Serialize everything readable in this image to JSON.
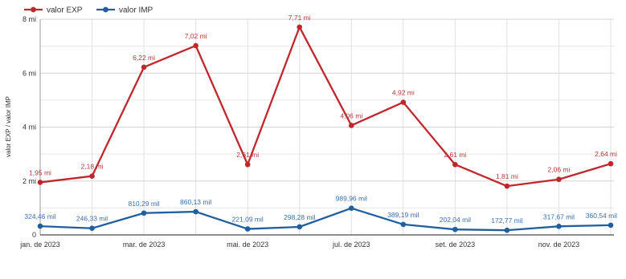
{
  "chart_data": {
    "type": "line",
    "x": [
      "2023-01",
      "2023-02",
      "2023-03",
      "2023-04",
      "2023-05",
      "2023-06",
      "2023-07",
      "2023-08",
      "2023-09",
      "2023-10",
      "2023-11",
      "2023-12"
    ],
    "series": [
      {
        "name": "valor EXP",
        "color": "#c0272d",
        "label_color": "#b23a3a",
        "values": [
          1.95,
          2.18,
          6.22,
          7.02,
          2.61,
          7.71,
          4.06,
          4.92,
          2.61,
          1.81,
          2.06,
          2.64
        ],
        "labels": [
          "1,95 mi",
          "2,18 mi",
          "6,22 mi",
          "7,02 mi",
          "2,61 mi",
          "7,71 mi",
          "4,06 mi",
          "4,92 mi",
          "2,61 mi",
          "1,81 mi",
          "2,06 mi",
          "2,64 mi"
        ]
      },
      {
        "name": "valor IMP",
        "color": "#1f5fa0",
        "label_color": "#3a6ea8",
        "values": [
          0.32446,
          0.24633,
          0.81029,
          0.86013,
          0.22109,
          0.29828,
          0.98996,
          0.38919,
          0.20204,
          0.17277,
          0.31767,
          0.36054
        ],
        "labels": [
          "324,46 mil",
          "246,33 mil",
          "810,29 mil",
          "860,13 mil",
          "221,09 mil",
          "298,28 mil",
          "989,96 mil",
          "389,19 mil",
          "202,04 mil",
          "172,77 mil",
          "317,67 mil",
          "360,54 mil"
        ]
      }
    ],
    "ylabel": "valor EXP / valor IMP",
    "ylim": [
      0,
      8
    ],
    "yticks": [
      {
        "value": 0,
        "label": "0"
      },
      {
        "value": 2,
        "label": "2 mi"
      },
      {
        "value": 4,
        "label": "4 mi"
      },
      {
        "value": 6,
        "label": "6 mi"
      },
      {
        "value": 8,
        "label": "8 mi"
      }
    ],
    "xticks": [
      {
        "x": "2023-01",
        "label": "jan. de 2023"
      },
      {
        "x": "2023-03",
        "label": "mar. de 2023"
      },
      {
        "x": "2023-05",
        "label": "mai. de 2023"
      },
      {
        "x": "2023-07",
        "label": "jul. de 2023"
      },
      {
        "x": "2023-09",
        "label": "set. de 2023"
      },
      {
        "x": "2023-11",
        "label": "nov. de 2023"
      }
    ],
    "grid": true,
    "legend_position": "top-left"
  }
}
